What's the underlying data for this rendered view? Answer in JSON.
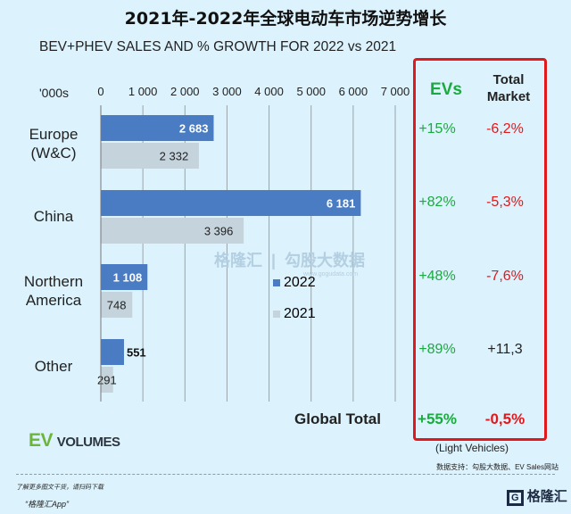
{
  "chart_data": {
    "type": "bar",
    "title": "2021年-2022年全球电动车市场逆势增长",
    "subtitle": "BEV+PHEV SALES AND % GROWTH FOR 2022 vs 2021",
    "unit_label": "'000s",
    "categories": [
      "Europe (W&C)",
      "China",
      "Northern America",
      "Other"
    ],
    "series": [
      {
        "name": "2022",
        "color": "#4a7cc4",
        "values": [
          2683,
          6181,
          1108,
          551
        ],
        "labels": [
          "2 683",
          "6 181",
          "1 108",
          "551"
        ]
      },
      {
        "name": "2021",
        "color": "#c5d3dc",
        "values": [
          2332,
          3396,
          748,
          291
        ],
        "labels": [
          "2 332",
          "3 396",
          "748",
          "291"
        ]
      }
    ],
    "xlim": [
      0,
      7000
    ],
    "xticks": [
      0,
      1000,
      2000,
      3000,
      4000,
      5000,
      6000,
      7000
    ],
    "xtick_labels": [
      "0",
      "1 000",
      "2 000",
      "3 000",
      "4 000",
      "5 000",
      "6 000",
      "7 000"
    ],
    "grid": true,
    "legend_placement": "center-right"
  },
  "table": {
    "ev_header": "EVs",
    "total_header": "Total Market",
    "rows": [
      {
        "ev": "+15%",
        "total": "-6,2%",
        "total_color": "#e0191c"
      },
      {
        "ev": "+82%",
        "total": "-5,3%",
        "total_color": "#e0191c"
      },
      {
        "ev": "+48%",
        "total": "-7,6%",
        "total_color": "#e0191c"
      },
      {
        "ev": "+89%",
        "total": "+11,3",
        "total_color": "#222222"
      }
    ],
    "global_label": "Global Total",
    "global_ev": "+55%",
    "global_total": "-0,5%",
    "note": "(Light Vehicles)"
  },
  "logo": {
    "ev": "EV",
    "volumes": "VOLUMES"
  },
  "watermark": {
    "brand": "格隆汇",
    "site": "勾股大数据",
    "url": "www.gogudata.com"
  },
  "source": "数据支持：勾股大数据、EV Sales网站",
  "footer": {
    "promo": "了解更多图文干货，请扫码下载",
    "app": "“格隆汇App”",
    "brand": "格隆汇"
  }
}
